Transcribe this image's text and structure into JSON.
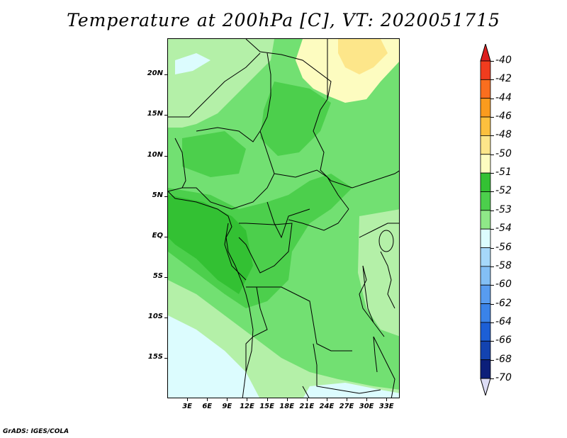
{
  "title": "Temperature at 200hPa [C], VT: 2020051715",
  "footer": "GrADS: IGES/COLA",
  "lat_axis": {
    "ticks": [
      {
        "label": "20N",
        "value": 20
      },
      {
        "label": "15N",
        "value": 15
      },
      {
        "label": "10N",
        "value": 10
      },
      {
        "label": "5N",
        "value": 5
      },
      {
        "label": "EQ",
        "value": 0
      },
      {
        "label": "5S",
        "value": -5
      },
      {
        "label": "10S",
        "value": -10
      },
      {
        "label": "15S",
        "value": -15
      }
    ],
    "range": [
      -20,
      24.5
    ]
  },
  "lon_axis": {
    "ticks": [
      {
        "label": "3E",
        "value": 3
      },
      {
        "label": "6E",
        "value": 6
      },
      {
        "label": "9E",
        "value": 9
      },
      {
        "label": "12E",
        "value": 12
      },
      {
        "label": "15E",
        "value": 15
      },
      {
        "label": "18E",
        "value": 18
      },
      {
        "label": "21E",
        "value": 21
      },
      {
        "label": "24E",
        "value": 24
      },
      {
        "label": "27E",
        "value": 27
      },
      {
        "label": "30E",
        "value": 30
      },
      {
        "label": "33E",
        "value": 33
      }
    ],
    "range": [
      0,
      35
    ]
  },
  "colorbar": {
    "levels": [
      "-40",
      "-42",
      "-44",
      "-46",
      "-48",
      "-50",
      "-51",
      "-52",
      "-53",
      "-54",
      "-56",
      "-58",
      "-60",
      "-62",
      "-64",
      "-66",
      "-68",
      "-70"
    ],
    "colors": [
      "#dc1e1e",
      "#f03c1e",
      "#fa6e1e",
      "#fa9b1e",
      "#fcc03e",
      "#fde68a",
      "#fdfcc0",
      "#33c133",
      "#4ccf4c",
      "#8fe888",
      "#dcfcfe",
      "#a6d8fa",
      "#83bff5",
      "#589cf0",
      "#3a83e8",
      "#1c5fd6",
      "#1343b0",
      "#0c1f7a",
      "#dcdcf5"
    ]
  },
  "field_colors": {
    "lt52": "#33c133",
    "b52_53": "#4ccf4c",
    "b53_54": "#72e072",
    "b54_56": "#b4f0a8",
    "b56_58": "#dcfcfe",
    "warm_50": "#fde68a",
    "warm_51": "#fdfcc0"
  }
}
